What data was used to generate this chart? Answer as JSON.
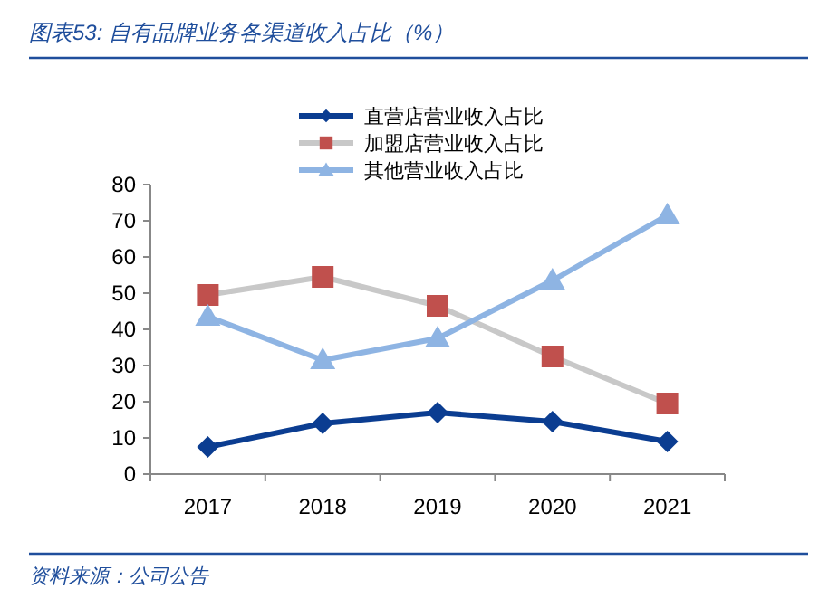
{
  "chart_data": {
    "type": "line",
    "title": "图表53:  自有品牌业务各渠道收入占比（%）",
    "annotations": [
      "资料来源：公司公告"
    ],
    "categories": [
      "2017",
      "2018",
      "2019",
      "2020",
      "2021"
    ],
    "series": [
      {
        "name": "直营店营业收入占比",
        "color": "#0b3d91",
        "marker": "diamond",
        "values": [
          7.5,
          14,
          17,
          14.5,
          9
        ]
      },
      {
        "name": "加盟店营业收入占比",
        "color": "#c0504d",
        "marker": "square",
        "values": [
          49.5,
          54.5,
          46.5,
          32.5,
          19.5
        ]
      },
      {
        "name": "其他营业收入占比",
        "color": "#8eb4e3",
        "marker": "triangle",
        "values": [
          43.5,
          31.5,
          37.5,
          53.5,
          71.5
        ]
      }
    ],
    "ylim": [
      0,
      80
    ],
    "yticks": [
      0,
      10,
      20,
      30,
      40,
      50,
      60,
      70,
      80
    ],
    "grid": false,
    "legend": "top",
    "line_style": "solid"
  }
}
